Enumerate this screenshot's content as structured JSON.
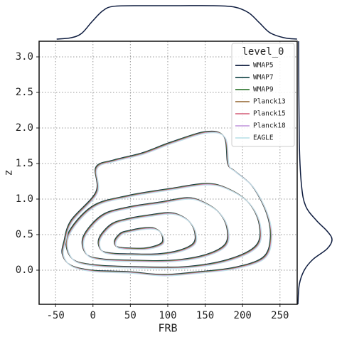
{
  "chart_data": {
    "type": "kde-joint",
    "x_label": "FRB",
    "y_label": "z",
    "legend_title": "level_0",
    "legend_loc": "upper right",
    "grid": true,
    "xlim": [
      -72,
      273
    ],
    "ylim": [
      -0.48,
      3.22
    ],
    "xticks": [
      -50,
      0,
      50,
      100,
      150,
      200,
      250
    ],
    "yticks": [
      {
        "value": 0,
        "label": "0.0"
      },
      {
        "value": 0.5,
        "label": "0.5"
      },
      {
        "value": 1,
        "label": "1.0"
      },
      {
        "value": 1.5,
        "label": "1.5"
      },
      {
        "value": 2,
        "label": "2.0"
      },
      {
        "value": 2.5,
        "label": "2.5"
      },
      {
        "value": 3,
        "label": "3.0"
      }
    ],
    "series": [
      {
        "name": "WMAP5",
        "color": "#0d1b3e"
      },
      {
        "name": "WMAP7",
        "color": "#1f4e4f"
      },
      {
        "name": "WMAP9",
        "color": "#3a7d3a"
      },
      {
        "name": "Planck13",
        "color": "#a0784a"
      },
      {
        "name": "Planck15",
        "color": "#d9728a"
      },
      {
        "name": "Planck18",
        "color": "#c8a2e0"
      },
      {
        "name": "EAGLE",
        "color": "#bfe3ea"
      }
    ],
    "contours": [
      {
        "x": [
          -39,
          -29.5,
          3.8,
          3.8,
          27.6,
          65.6,
          103.6,
          151,
          175,
          180,
          189,
          213,
          232,
          237,
          227,
          189,
          142,
          94,
          46.6,
          -1,
          -29.5,
          -41
        ],
        "y": [
          0.4,
          0.7,
          1.1,
          1.45,
          1.55,
          1.65,
          1.8,
          1.95,
          1.88,
          1.5,
          1.4,
          1.18,
          0.8,
          0.45,
          0.18,
          0.04,
          -0.02,
          -0.06,
          -0.02,
          0,
          0.07,
          0.22
        ]
      },
      {
        "x": [
          -34,
          -1,
          46.6,
          103.6,
          151,
          180,
          208,
          222,
          218,
          180,
          123,
          56,
          -1,
          -29.5
        ],
        "y": [
          0.5,
          0.9,
          1.05,
          1.15,
          1.22,
          1.15,
          0.95,
          0.65,
          0.35,
          0.15,
          0.05,
          0.05,
          0.08,
          0.18
        ]
      },
      {
        "x": [
          -13,
          11.8,
          47.5,
          90.2,
          125.8,
          147.5,
          168.5,
          179,
          176,
          147.5,
          104.8,
          54.5,
          11.8,
          -9.6
        ],
        "y": [
          0.475,
          0.775,
          0.89,
          0.96,
          1.02,
          0.96,
          0.81,
          0.59,
          0.36,
          0.21,
          0.14,
          0.14,
          0.16,
          0.235
        ]
      },
      {
        "x": [
          8,
          24.5,
          48.3,
          76.8,
          100.5,
          115,
          129,
          136,
          134,
          115,
          86.5,
          53,
          24.5,
          10.3
        ],
        "y": [
          0.45,
          0.65,
          0.73,
          0.78,
          0.81,
          0.78,
          0.68,
          0.53,
          0.38,
          0.28,
          0.23,
          0.23,
          0.24,
          0.29
        ]
      },
      {
        "x": [
          29,
          37.3,
          49.2,
          63.4,
          75.3,
          82.5,
          89.5,
          93,
          92,
          82.5,
          68.3,
          51.5,
          37.3,
          30.1
        ],
        "y": [
          0.425,
          0.525,
          0.56,
          0.59,
          0.6,
          0.59,
          0.54,
          0.46,
          0.39,
          0.34,
          0.31,
          0.31,
          0.32,
          0.345
        ]
      }
    ],
    "x_density": {
      "x": [
        -48.5,
        -29.5,
        -15.2,
        -1,
        13.3,
        27.6,
        65.6,
        113,
        161,
        189,
        208,
        222.4,
        236.6,
        255.6,
        272.8
      ],
      "y": [
        0,
        0.04,
        0.17,
        0.53,
        0.85,
        0.98,
        1,
        1,
        1,
        0.96,
        0.79,
        0.49,
        0.19,
        0.04,
        0
      ]
    },
    "y_density": {
      "z": [
        3.22,
        1.8,
        1.2,
        0.9,
        0.7,
        0.55,
        0.43,
        0.3,
        0.15,
        0,
        -0.2,
        -0.48
      ],
      "density": [
        0.04,
        0.06,
        0.12,
        0.24,
        0.54,
        0.84,
        0.98,
        0.84,
        0.44,
        0.2,
        0.06,
        0.02
      ]
    }
  }
}
